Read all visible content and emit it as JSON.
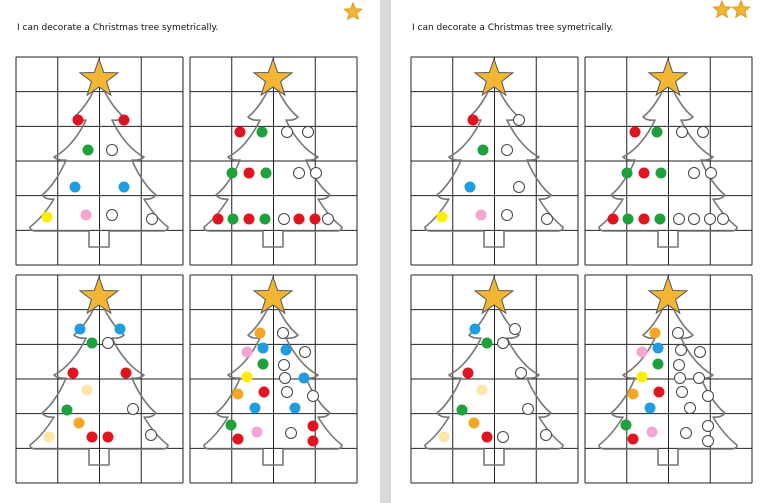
{
  "pages": [
    {
      "title": "I can decorate a Christmas tree symetrically."
    },
    {
      "title": "I can decorate a Christmas tree symetrically."
    }
  ]
}
